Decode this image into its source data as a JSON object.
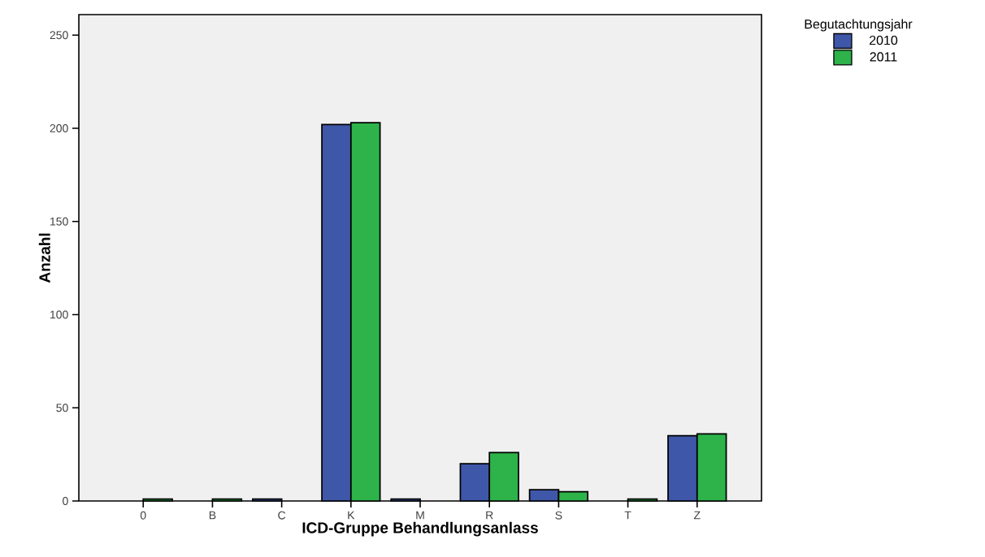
{
  "chart_data": {
    "type": "bar",
    "xlabel": "ICD-Gruppe Behandlungsanlass",
    "ylabel": "Anzahl",
    "legend_title": "Begutachtungsjahr",
    "categories": [
      "0",
      "B",
      "C",
      "K",
      "M",
      "R",
      "S",
      "T",
      "Z"
    ],
    "series": [
      {
        "name": "2010",
        "color": "#3f57a8",
        "values": [
          null,
          null,
          1,
          202,
          1,
          20,
          6,
          null,
          35
        ]
      },
      {
        "name": "2011",
        "color": "#2db34a",
        "values": [
          1,
          1,
          null,
          203,
          null,
          26,
          5,
          1,
          36
        ]
      }
    ],
    "ylim": [
      0,
      261
    ],
    "yticks": [
      0,
      50,
      100,
      150,
      200,
      250
    ],
    "grid": false,
    "legend": "top right"
  }
}
